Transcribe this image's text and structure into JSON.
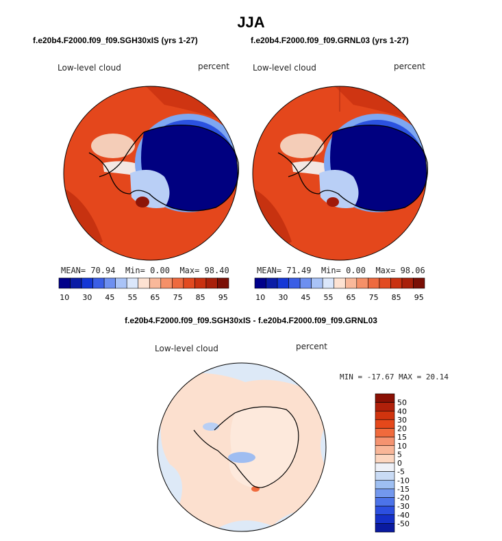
{
  "figure": {
    "season": "JJA",
    "variable_label": "Low-level cloud",
    "units_label": "percent"
  },
  "colors": {
    "ocean_high": "#d73a0b",
    "ocean_mid": "#e8431a",
    "ocean_dark": "#c12a0a",
    "ice_dark": "#000080",
    "ice_mid": "#1437d6",
    "ice_light": "#6e9ef0",
    "pale": "#f3e6dd",
    "diff_bg": "#dde9f7",
    "diff_pos": "#fce0cf",
    "coast": "#000000"
  },
  "chart_data": [
    {
      "type": "heatmap",
      "projection": "south-polar stereographic",
      "title": "f.e20b4.F2000.f09_f09.SGH30xIS (yrs 1-27)",
      "left_label": "Low-level cloud",
      "right_label": "percent",
      "stats": {
        "mean_label": "MEAN=",
        "mean": "70.94",
        "min_label": "Min=",
        "min": "0.00",
        "max_label": "Max=",
        "max": "98.40"
      },
      "colorbar": {
        "orientation": "horizontal",
        "tick_labels": [
          "10",
          "30",
          "45",
          "55",
          "65",
          "75",
          "85",
          "95"
        ],
        "colors": [
          "#00008a",
          "#0a1ca6",
          "#1437d6",
          "#3a5ee6",
          "#6d8ff0",
          "#a9c3f7",
          "#dbe7fb",
          "#fde2d2",
          "#f9b89a",
          "#f59068",
          "#ee6a3f",
          "#e24a20",
          "#c93110",
          "#a8200a",
          "#7a0f05"
        ]
      }
    },
    {
      "type": "heatmap",
      "projection": "south-polar stereographic",
      "title": "f.e20b4.F2000.f09_f09.GRNL03 (yrs 1-27)",
      "left_label": "Low-level cloud",
      "right_label": "percent",
      "stats": {
        "mean_label": "MEAN=",
        "mean": "71.49",
        "min_label": "Min=",
        "min": "0.00",
        "max_label": "Max=",
        "max": "98.06"
      },
      "colorbar": {
        "orientation": "horizontal",
        "tick_labels": [
          "10",
          "30",
          "45",
          "55",
          "65",
          "75",
          "85",
          "95"
        ],
        "colors": [
          "#00008a",
          "#0a1ca6",
          "#1437d6",
          "#3a5ee6",
          "#6d8ff0",
          "#a9c3f7",
          "#dbe7fb",
          "#fde2d2",
          "#f9b89a",
          "#f59068",
          "#ee6a3f",
          "#e24a20",
          "#c93110",
          "#a8200a",
          "#7a0f05"
        ]
      }
    },
    {
      "type": "heatmap",
      "projection": "south-polar stereographic",
      "title": "f.e20b4.F2000.f09_f09.SGH30xIS - f.e20b4.F2000.f09_f09.GRNL03",
      "left_label": "Low-level cloud",
      "right_label": "percent",
      "stats": {
        "minmax_text": "MIN = -17.67 MAX =  20.14"
      },
      "colorbar": {
        "orientation": "vertical",
        "tick_labels": [
          "50",
          "40",
          "30",
          "20",
          "15",
          "10",
          "5",
          "0",
          "-5",
          "-10",
          "-15",
          "-20",
          "-30",
          "-40",
          "-50"
        ],
        "colors": [
          "#8a1004",
          "#b0200a",
          "#d0340e",
          "#e5481b",
          "#f06a3c",
          "#f59370",
          "#f9b698",
          "#fcd6c0",
          "#eef1f8",
          "#c9dbf5",
          "#9ebff2",
          "#7398ee",
          "#4c73e9",
          "#2c4fe0",
          "#1530c8",
          "#0a1aa0"
        ]
      }
    }
  ]
}
